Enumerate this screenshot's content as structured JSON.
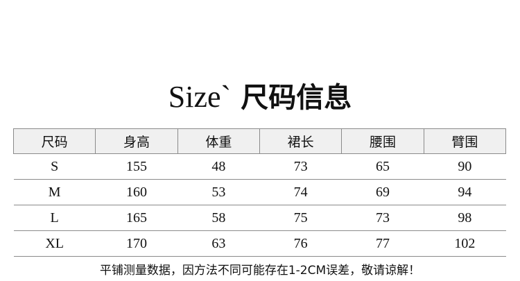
{
  "title": {
    "en": "Size`",
    "cn": "尺码信息"
  },
  "table": {
    "headers": [
      "尺码",
      "身高",
      "体重",
      "裙长",
      "腰围",
      "臂围"
    ],
    "rows": [
      [
        "S",
        "155",
        "48",
        "73",
        "65",
        "90"
      ],
      [
        "M",
        "160",
        "53",
        "74",
        "69",
        "94"
      ],
      [
        "L",
        "165",
        "58",
        "75",
        "73",
        "98"
      ],
      [
        "XL",
        "170",
        "63",
        "76",
        "77",
        "102"
      ]
    ]
  },
  "note": "平铺测量数据，因方法不同可能存在1-2CM误差，敬请谅解！"
}
